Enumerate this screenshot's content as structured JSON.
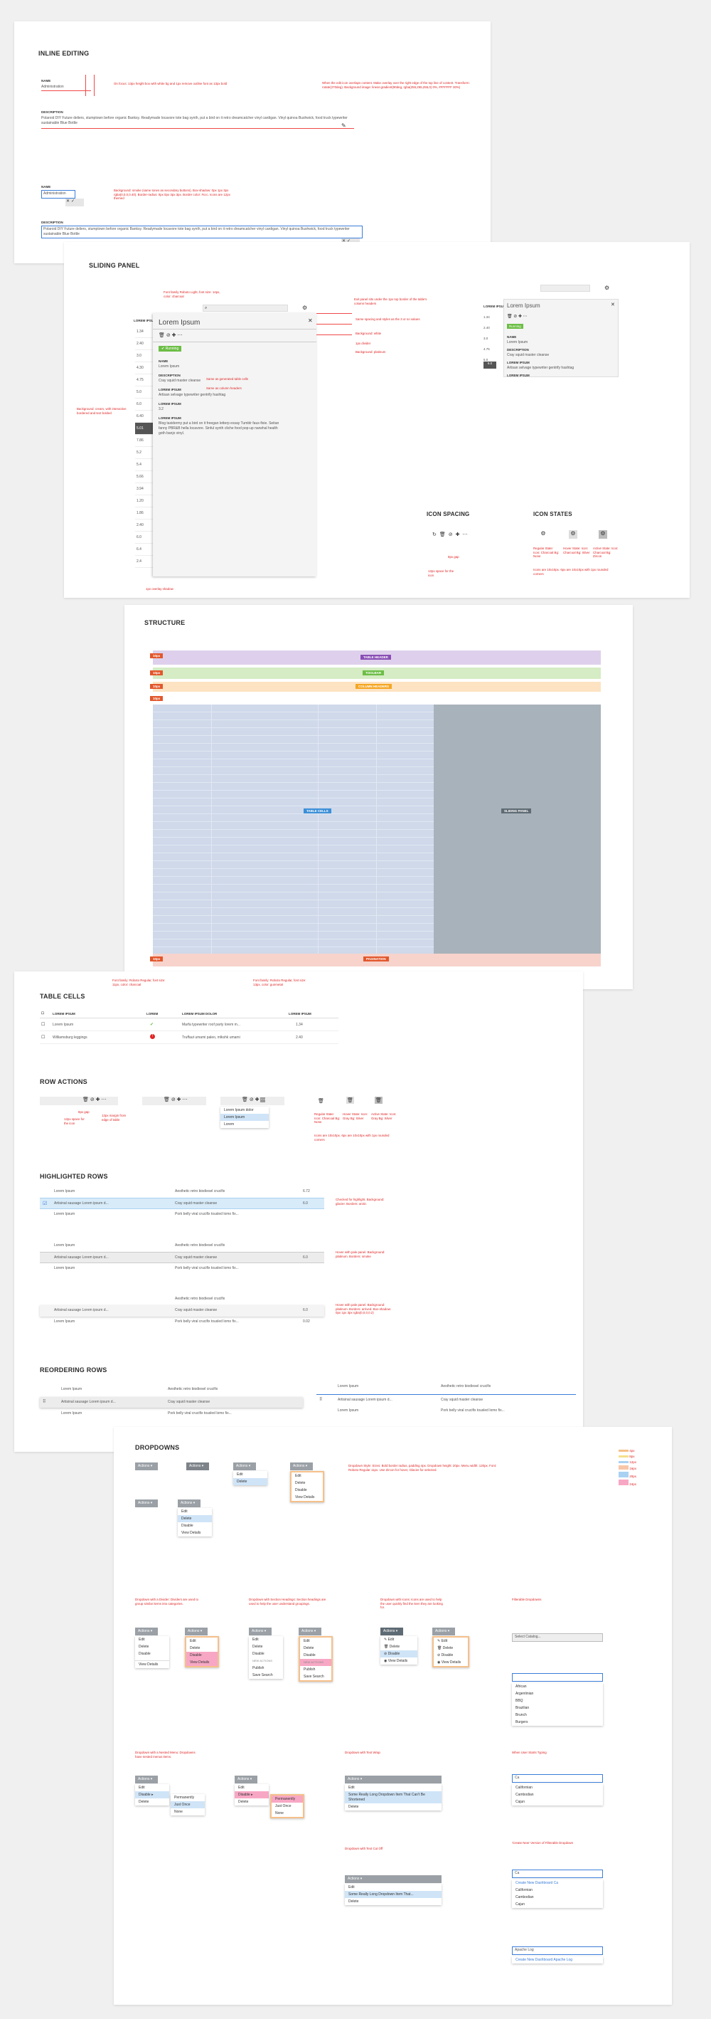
{
  "inline_editing": {
    "title": "INLINE EDITING",
    "name_label": "NAME",
    "name_value": "Administration",
    "description_label": "DESCRIPTION",
    "description_value": "Polaroid DIY Future deliers, stumptown before organic Banksy. Readymade locavore tote bag synth, put a bird on it retro dreamcatcher vinyl cardigan. Vinyl quinoa Bushwick, food truck typewriter sustainable Blue Bottle",
    "note_focus": "On focus: 13px height box with white bg and 1px remove outline font as 13px bold",
    "note_edit": "When the edit icon overlaps content. Make overlay over the right edge of the top line of content. Transform: rotate(270deg). Background image: linear-gradient(90deg, rgba(255,255,255,0) 0%, #FFFFFF 30%)",
    "note_controls": "Background: smoke (same tones as secondary buttons). Box-shadow: 0px 1px 3px rgba(0,0,0,0.40). Border-radius: 0px 0px 3px 3px. Border color: #ccc. Icons are 12px themed"
  },
  "sliding_panel": {
    "title": "SLIDING PANEL",
    "column_header": "LOREM IPSUM",
    "items": [
      "1.34",
      "2.40",
      "3.0",
      "4.30",
      "4.75",
      "5.0",
      "6.0",
      "6.40",
      "5.01",
      "7.86",
      "5.2",
      "5.4",
      "5.66",
      "3.94",
      "1.20",
      "1.86",
      "2.40",
      "6.0",
      "6.4",
      "2.4"
    ],
    "panel_title": "Lorem Ipsum",
    "status": "Running",
    "name_label": "NAME",
    "name_value": "Lorem Ipsum",
    "desc_label": "DESCRIPTION",
    "desc_value": "Cray squid master cleanse",
    "lorem1_label": "LOREM IPSUM",
    "lorem1_value": "Artisan selvage typewriter gentrify hashtag",
    "lorem2_label": "LOREM IPSUM",
    "lorem2_value": "3.2",
    "lorem3_label": "LOREM IPSUM",
    "lorem3_value": "Blog taxidermy put a bird on it freegan letterp essay Tumblr faux-fixie. Seitan fanny PBR&B hella locavore. Sinful synth cliche food pop-up narwhal health goth banjo vinyl.",
    "note_shadow": "1px overlay shadow",
    "note_bg_active": "Background: cream, with interactive bordered and text bolded",
    "note_title": "Font family Roboto Light, font size: 14px, color: charcoal",
    "note_closable": "Exit panel sits under the 1px top border of the table's column headers",
    "note_spacing": "Same spacing and styles as the 3 or so values",
    "note_background": "Background: white",
    "note_dividers": "1px divider",
    "note_bg_platinum": "Background: platinum",
    "note_name": "Same as generated table cells",
    "note_desc": "Same as column headers"
  },
  "icon_spacing": {
    "title": "ICON SPACING",
    "note_spacing": "12px space for the icon",
    "note_gap": "8px gap"
  },
  "icon_states": {
    "title": "ICON STATES",
    "regular": "Regular State: Icon: Charcoal Bg: None",
    "hover": "Hover State: Icon: Charcoal Bg: Silver",
    "active": "Active State: Icon: Charcoal Bg: Zircon",
    "note": "Icons are 10x10px. 6px are 10x10px with 1px rounded corners"
  },
  "structure": {
    "title": "STRUCTURE",
    "table_header": "TABLE HEADER",
    "toolbar": "TOOLBAR",
    "column_headers": "COLUMN HEADERS",
    "table_cells": "TABLE CELLS",
    "sliding_panel": "SLIDING PANEL",
    "pagination": "PAGINATION",
    "spacing_label": "10px"
  },
  "table_cells": {
    "title": "TABLE CELLS",
    "headers": [
      "LOREM IPSUM",
      "LOREM",
      "LOREM IPSUM DOLOR",
      "LOREM IPSUM"
    ],
    "rows": [
      {
        "name": "Lorem Ipsum",
        "desc": "Marfa typewriter roof party lorem m...",
        "value": "1.34"
      },
      {
        "name": "Williamsburg leggings",
        "desc": "Truffaut umami paleo, mlkshk umami",
        "value": "2.40"
      }
    ],
    "note_header": "Font family: Roboto Regular, font size: 11px, color: charcoal",
    "note_cell": "Font family: Roboto Regular, font size: 13px, color: gunmetal"
  },
  "row_actions": {
    "title": "ROW ACTIONS",
    "menu_items": [
      "Lorem Ipsum dolor",
      "Lorem Ipsum",
      "Lorem"
    ],
    "note_space": "12px space for the icon",
    "note_margin": "12px margin from edge of table",
    "note_gap": "8px gap",
    "regular": "Regular State: Icon: Charcoal Bg: None",
    "hover": "Hover State: Icon: Gray Bg: Silver",
    "active": "Active State: Icon: Gray Bg: Silver",
    "note_icons": "Icons are 10x10px. 6px are 10x10px with 1px rounded corners"
  },
  "highlighted_rows": {
    "title": "HIGHLIGHTED ROWS",
    "rows": [
      {
        "name": "Lorem Ipsum",
        "desc": "Aesthetic retro biodiesel crucifix",
        "value": "6.72"
      },
      {
        "name": "Artisinal sausage Lorem ipsum d...",
        "desc": "Cray squid master cleanse",
        "value": "6.0"
      },
      {
        "name": "Lorem Ipsum",
        "desc": "Pork belly viral crucifix tousled lomo fix...",
        "value": "0.02"
      }
    ],
    "note_checked": "Checked for highlight. Background: glacier. Borders: arctic",
    "note_hover": "Hover with pale panel. Background: platinum. Borders: smoke",
    "note_pale": "Hover with pale panel. Background: platinum. Borders: arrived. Box-shadow: 0px 1px 3px rgba(0,0,0,0.2)"
  },
  "reordering_rows": {
    "title": "REORDERING ROWS",
    "rows": [
      {
        "name": "Lorem Ipsum",
        "desc": "Aesthetic retro biodiesel crucifix"
      },
      {
        "name": "Artisinal sausage Lorem ipsum d...",
        "desc": "Cray squid master cleanse"
      },
      {
        "name": "Lorem Ipsum",
        "desc": "Pork belly viral crucifix tousled lomo fix..."
      }
    ]
  },
  "dropdowns": {
    "title": "DROPDOWNS",
    "actions": "Actions",
    "items": [
      "Edit",
      "Delete",
      "Disable",
      "View Details"
    ],
    "items_short": [
      "Edit",
      "Delete",
      "Disable",
      "View Details"
    ],
    "section_header": "NEW ACTIONS",
    "publish": "Publish",
    "save_search": "Save Search",
    "sub_items": [
      "Permanently",
      "Just Once",
      "None"
    ],
    "long_item": "Some Really Long Dropdown Item That Can't Be Shortened",
    "long_item2": "Some Really Long Dropdown Item That...",
    "filter_title": "Filterable Dropdowns",
    "filter_placeholder": "Select Catalog...",
    "filter_options": [
      "African",
      "Argentinian",
      "BBQ",
      "Brazilian",
      "Brunch",
      "Burgers"
    ],
    "typing_value": "Ca",
    "typing_options": [
      "Californian",
      "Cambodian",
      "Cajun"
    ],
    "create_new": "Create New Dashboard Ca",
    "apache_value": "Apache Log",
    "apache_create": "Create New Dashboard Apache Log",
    "note_style": "Dropdown Style: Sizes: Bold border radius, padding 4px. Dropdown height: 20px. Menu width: 120px. Font: Roboto Regular 11px. Use Zircon for hover, Glacier for selected.",
    "note_divider": "Dropdown with a Divider: Dividers are used to group similar items into categories.",
    "note_section": "Dropdown with Section Headings: Section headings are used to help the user understand groupings.",
    "note_icons": "Dropdown with Icons: Icons are used to help the user quickly find the item they are looking for.",
    "note_nested": "Dropdown with a Nested Menu: Dropdowns have nested menus items.",
    "note_text_wrap": "Dropdown with Text Wrap",
    "note_text_trunc": "Dropdown with Text Cut Off",
    "note_typing": "When User Starts Typing",
    "note_create": "'Create New' Version of Filterable Dropdown",
    "note_no_results": "No Results"
  },
  "colors": {
    "red": "#e02424",
    "header_purple": "#ded0ec",
    "toolbar_green": "#d5ecc4",
    "col_headers_orange": "#fde3c2",
    "cells_blue": "#cfd9ea",
    "panel_gray": "#a8b2ba",
    "pagination_pink": "#f7d3cc",
    "running_green": "#6cbe45"
  }
}
